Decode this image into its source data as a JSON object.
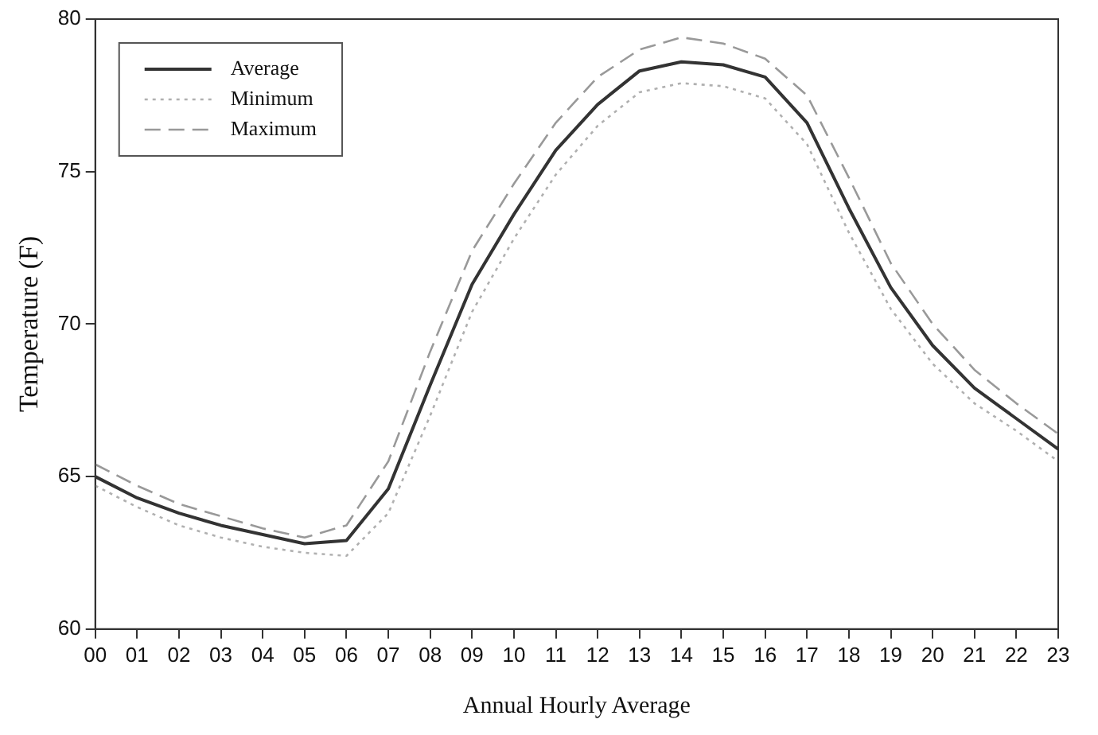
{
  "chart_data": {
    "type": "line",
    "xlabel": "Annual Hourly Average",
    "ylabel": "Temperature (F)",
    "categories": [
      "00",
      "01",
      "02",
      "03",
      "04",
      "05",
      "06",
      "07",
      "08",
      "09",
      "10",
      "11",
      "12",
      "13",
      "14",
      "15",
      "16",
      "17",
      "18",
      "19",
      "20",
      "21",
      "22",
      "23"
    ],
    "ylim": [
      60,
      80
    ],
    "yticks": [
      60,
      65,
      70,
      75,
      80
    ],
    "grid": false,
    "legend": "top left",
    "marker": "none",
    "series": [
      {
        "name": "Average",
        "color": "#333333",
        "line_style": "solid",
        "values": [
          65.0,
          64.3,
          63.8,
          63.4,
          63.1,
          62.8,
          62.9,
          64.6,
          68.0,
          71.3,
          73.6,
          75.7,
          77.2,
          78.3,
          78.6,
          78.5,
          78.1,
          76.6,
          73.8,
          71.2,
          69.3,
          67.9,
          66.9,
          65.9
        ]
      },
      {
        "name": "Minimum",
        "color": "#b0b0b0",
        "line_style": "dotted",
        "values": [
          64.7,
          64.0,
          63.4,
          63.0,
          62.7,
          62.5,
          62.4,
          63.8,
          67.0,
          70.4,
          72.8,
          74.9,
          76.5,
          77.6,
          77.9,
          77.8,
          77.4,
          75.9,
          73.0,
          70.5,
          68.7,
          67.4,
          66.5,
          65.5
        ]
      },
      {
        "name": "Maximum",
        "color": "#999999",
        "line_style": "dashed",
        "values": [
          65.4,
          64.7,
          64.1,
          63.7,
          63.3,
          63.0,
          63.4,
          65.5,
          69.1,
          72.4,
          74.6,
          76.6,
          78.1,
          79.0,
          79.4,
          79.2,
          78.7,
          77.5,
          74.8,
          72.0,
          70.0,
          68.5,
          67.4,
          66.4
        ]
      }
    ]
  }
}
